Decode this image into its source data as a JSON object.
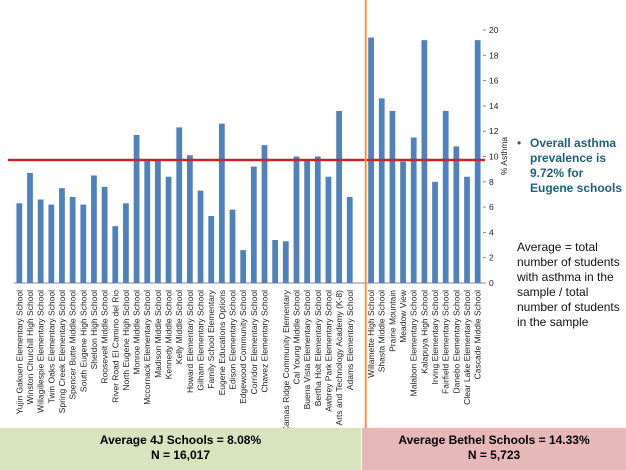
{
  "chart_data": {
    "type": "bar",
    "categories": [
      "Yujin Gakuen Elementary School",
      "Winston Churchill High School",
      "Willagillespie Elementary School",
      "Twin Oaks Elementary School",
      "Spring Creek Elementary School",
      "Spencer Butte Middle School",
      "South Eugene High School",
      "Sheldon High School",
      "Roosevelt Middle School",
      "River Road El Camino del Rio",
      "North Eugene High School",
      "Monroe Middle School",
      "Mccornack Elementary School",
      "Madison Middle School",
      "Kennedy Middle School",
      "Kelly Middle School",
      "Howard Elementary School",
      "Gilham Elementary School",
      "Family School Elementary",
      "Eugene Educations Options",
      "Edison Elementary School",
      "Edgewood Community School",
      "Corridor Elementary School",
      "Chavez Elementary School",
      null,
      "Camas Ridge Community Elementary",
      "Cal Young Middle School",
      "Buena Vista Elementary School",
      "Bertha Holt Elementary School",
      "Awbrey Park Elementary School",
      "Arts and Technology Academy (K-8)",
      "Adams Elementary School",
      "Willamette High School",
      "Shasta Middle School",
      "Prairie Mountain",
      "Meadow View",
      "Malabon Elementary School",
      "Kalapuya High School",
      "Irving Elementary School",
      "Fairfield Elementary School",
      "Danebo Elementary School",
      "Clear Lake Elementary School",
      "Cascade Middle School"
    ],
    "values": [
      6.3,
      8.7,
      6.6,
      6.2,
      7.5,
      6.8,
      6.2,
      8.5,
      7.6,
      4.5,
      6.3,
      11.7,
      9.7,
      9.7,
      8.4,
      12.3,
      10.1,
      7.3,
      5.3,
      12.6,
      5.8,
      2.6,
      9.2,
      10.9,
      3.4,
      3.3,
      10.0,
      9.8,
      10.0,
      8.4,
      13.6,
      6.8,
      19.4,
      14.6,
      13.6,
      9.6,
      11.5,
      19.2,
      8.0,
      13.6,
      10.8,
      8.4,
      19.2
    ],
    "color": "#4f81bd",
    "ylim": [
      0,
      20
    ],
    "yticks": [
      0,
      2,
      4,
      6,
      8,
      10,
      12,
      14,
      16,
      18,
      20
    ],
    "y_label": "% Asthma",
    "reference_line": {
      "value": 9.72,
      "color": "#c0282d"
    },
    "divider_color": "#f79646",
    "note": "Overall asthma prevalence is 9.72% for Eugene schools",
    "definition": "Average = total number of students with asthma in the sample / total number of students in the sample",
    "groups": [
      {
        "label": "Average 4J Schools = 8.08%",
        "n": "N = 16,017"
      },
      {
        "label": "Average Bethel Schools = 14.33%",
        "n": "N = 5,723"
      }
    ]
  }
}
